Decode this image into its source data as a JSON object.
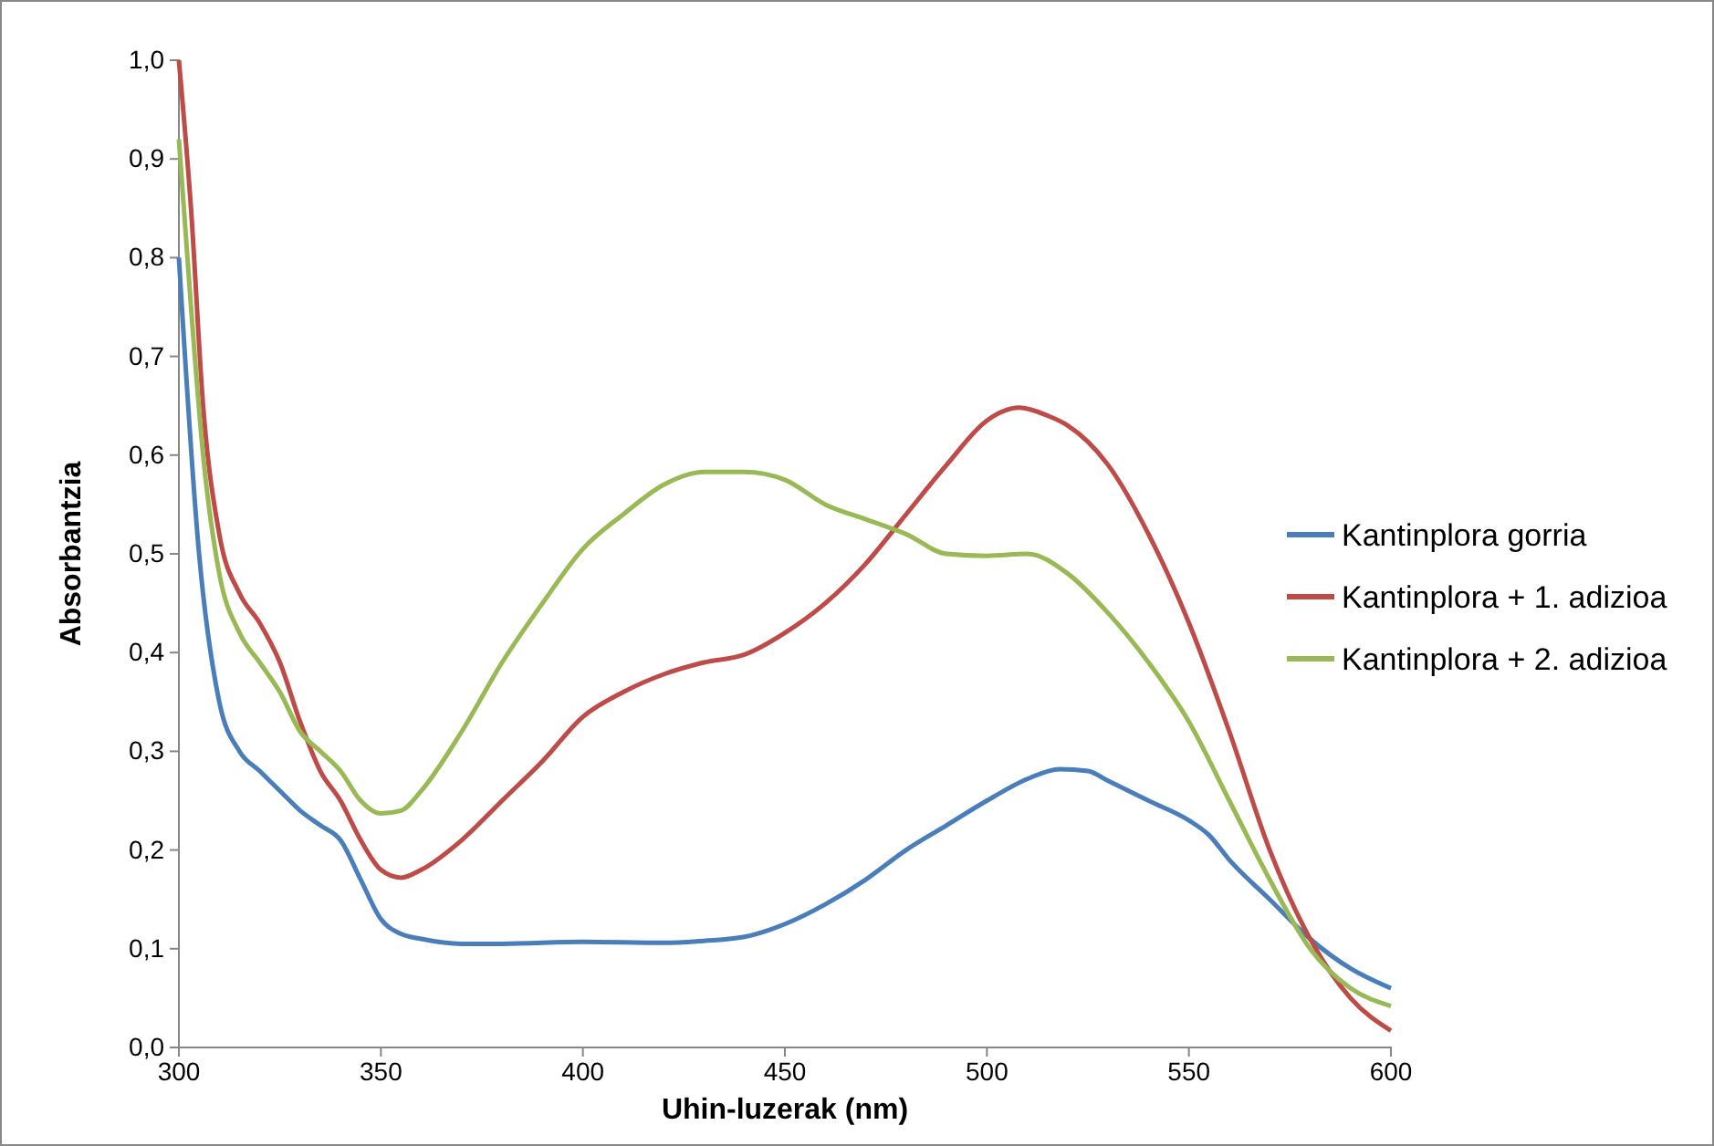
{
  "chart_data": {
    "type": "line",
    "xlabel": "Uhin-luzerak (nm)",
    "ylabel": "Absorbantzia",
    "xlim": [
      300,
      600
    ],
    "xticks": [
      300,
      350,
      400,
      450,
      500,
      550,
      600
    ],
    "ylim": [
      0,
      1
    ],
    "yticks": [
      {
        "value": 0,
        "label": "0,0"
      },
      {
        "value": 0.1,
        "label": "0,1"
      },
      {
        "value": 0.2,
        "label": "0,2"
      },
      {
        "value": 0.3,
        "label": "0,3"
      },
      {
        "value": 0.4,
        "label": "0,4"
      },
      {
        "value": 0.5,
        "label": "0,5"
      },
      {
        "value": 0.6,
        "label": "0,6"
      },
      {
        "value": 0.7,
        "label": "0,7"
      },
      {
        "value": 0.8,
        "label": "0,8"
      },
      {
        "value": 0.9,
        "label": "0,9"
      },
      {
        "value": 1,
        "label": "1,0"
      }
    ],
    "grid": false,
    "legend": "right",
    "marker": "none",
    "line_style": "solid",
    "series": [
      {
        "name": "Kantinplora gorria",
        "color": "#4a7ebb",
        "x": [
          300,
          305,
          310,
          315,
          320,
          325,
          330,
          335,
          340,
          345,
          350,
          355,
          360,
          370,
          380,
          400,
          420,
          430,
          440,
          450,
          460,
          470,
          480,
          490,
          500,
          510,
          518,
          525,
          530,
          540,
          550,
          555,
          560,
          570,
          580,
          590,
          600
        ],
        "values": [
          0.8,
          0.5,
          0.35,
          0.3,
          0.28,
          0.26,
          0.24,
          0.225,
          0.21,
          0.17,
          0.13,
          0.115,
          0.11,
          0.105,
          0.105,
          0.107,
          0.106,
          0.108,
          0.112,
          0.125,
          0.145,
          0.17,
          0.2,
          0.225,
          0.25,
          0.272,
          0.282,
          0.28,
          0.27,
          0.25,
          0.23,
          0.215,
          0.19,
          0.15,
          0.11,
          0.08,
          0.06
        ]
      },
      {
        "name": "Kantinplora + 1. adizioa",
        "color": "#be4b48",
        "x": [
          300,
          303,
          306,
          310,
          315,
          320,
          325,
          330,
          335,
          340,
          345,
          350,
          355,
          360,
          370,
          380,
          390,
          400,
          410,
          420,
          430,
          440,
          450,
          460,
          470,
          480,
          490,
          500,
          508,
          515,
          520,
          530,
          540,
          550,
          560,
          570,
          580,
          590,
          600
        ],
        "values": [
          1.0,
          0.85,
          0.65,
          0.52,
          0.46,
          0.43,
          0.39,
          0.33,
          0.28,
          0.25,
          0.21,
          0.18,
          0.172,
          0.18,
          0.21,
          0.25,
          0.29,
          0.335,
          0.36,
          0.378,
          0.39,
          0.398,
          0.42,
          0.45,
          0.49,
          0.54,
          0.59,
          0.635,
          0.648,
          0.64,
          0.63,
          0.59,
          0.52,
          0.43,
          0.32,
          0.2,
          0.11,
          0.05,
          0.017
        ]
      },
      {
        "name": "Kantinplora + 2. adizioa",
        "color": "#98b954",
        "x": [
          300,
          303,
          306,
          310,
          315,
          320,
          325,
          330,
          335,
          340,
          345,
          350,
          355,
          360,
          370,
          380,
          390,
          400,
          410,
          420,
          430,
          440,
          450,
          460,
          470,
          480,
          490,
          500,
          510,
          520,
          530,
          540,
          550,
          560,
          570,
          580,
          590,
          600
        ],
        "values": [
          0.92,
          0.75,
          0.6,
          0.48,
          0.42,
          0.39,
          0.36,
          0.32,
          0.3,
          0.28,
          0.25,
          0.237,
          0.24,
          0.26,
          0.32,
          0.39,
          0.45,
          0.505,
          0.54,
          0.57,
          0.583,
          0.583,
          0.575,
          0.55,
          0.535,
          0.52,
          0.5,
          0.498,
          0.5,
          0.48,
          0.44,
          0.39,
          0.33,
          0.25,
          0.17,
          0.1,
          0.06,
          0.042
        ]
      }
    ]
  }
}
